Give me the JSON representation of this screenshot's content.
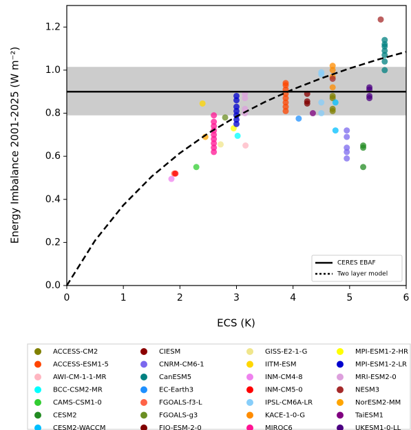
{
  "chart_data": {
    "type": "scatter",
    "xlabel": "ECS (K)",
    "ylabel": "Energy Imbalance 2001-2025 (W m⁻²)",
    "xlim": [
      0,
      6
    ],
    "ylim": [
      0,
      1.3
    ],
    "xticks": [
      0,
      1,
      2,
      3,
      4,
      5,
      6
    ],
    "yticks": [
      {
        "value": 0,
        "label": "0.0"
      },
      {
        "value": 0.2,
        "label": "0.2"
      },
      {
        "value": 0.4,
        "label": "0.4"
      },
      {
        "value": 0.6,
        "label": "0.6"
      },
      {
        "value": 0.8,
        "label": "0.8"
      },
      {
        "value": 1.0,
        "label": "1.0"
      },
      {
        "value": 1.2,
        "label": "1.2"
      }
    ],
    "obs_band": {
      "ylim": [
        0.79,
        1.015
      ],
      "color": "#cccccc"
    },
    "reference_line": {
      "name": "CERES EBAF",
      "y": 0.9,
      "color": "#000000",
      "style": "solid"
    },
    "model_curve": {
      "name": "Two layer model",
      "color": "#000000",
      "style": "dashed",
      "x": [
        0,
        0.5,
        1,
        1.5,
        2,
        2.5,
        3,
        3.5,
        4,
        4.5,
        5,
        5.5,
        6
      ],
      "y": [
        0,
        0.209,
        0.373,
        0.506,
        0.615,
        0.707,
        0.785,
        0.852,
        0.911,
        0.962,
        1.008,
        1.049,
        1.085
      ]
    },
    "inner_legend_position": "lower right",
    "series_legend_position": "below",
    "series": [
      {
        "name": "ACCESS-CM2",
        "color": "#808000",
        "x": [
          4.7,
          4.7,
          4.7,
          4.7
        ],
        "y": [
          0.81,
          0.82,
          0.87,
          0.88
        ]
      },
      {
        "name": "ACCESS-ESM1-5",
        "color": "#ff4500",
        "x": [
          3.87,
          3.87,
          3.87,
          3.87,
          3.87,
          3.87,
          3.87,
          3.87
        ],
        "y": [
          0.81,
          0.83,
          0.85,
          0.87,
          0.89,
          0.91,
          0.93,
          0.94
        ]
      },
      {
        "name": "AWI-CM-1-1-MR",
        "color": "#ffb6c1",
        "x": [
          3.16
        ],
        "y": [
          0.65
        ]
      },
      {
        "name": "BCC-CSM2-MR",
        "color": "#00ffff",
        "x": [
          3.02
        ],
        "y": [
          0.695
        ]
      },
      {
        "name": "CAMS-CSM1-0",
        "color": "#32cd32",
        "x": [
          2.29
        ],
        "y": [
          0.55
        ]
      },
      {
        "name": "CESM2",
        "color": "#228b22",
        "x": [
          5.24,
          5.24,
          5.24
        ],
        "y": [
          0.55,
          0.64,
          0.65
        ]
      },
      {
        "name": "CESM2-WACCM",
        "color": "#00bfff",
        "x": [
          4.75,
          4.75
        ],
        "y": [
          0.72,
          0.85
        ]
      },
      {
        "name": "CIESM",
        "color": "#8b0000",
        "x": [
          4.25
        ],
        "y": [
          0.89
        ]
      },
      {
        "name": "CNRM-CM6-1",
        "color": "#7b68ee",
        "x": [
          4.95,
          4.95,
          4.95,
          4.95,
          4.95
        ],
        "y": [
          0.59,
          0.62,
          0.64,
          0.69,
          0.72
        ]
      },
      {
        "name": "CanESM5",
        "color": "#008080",
        "x": [
          5.62,
          5.62,
          5.62,
          5.62,
          5.62,
          5.62,
          5.62
        ],
        "y": [
          1.0,
          1.04,
          1.07,
          1.09,
          1.11,
          1.12,
          1.14
        ]
      },
      {
        "name": "EC-Earth3",
        "color": "#1e90ff",
        "x": [
          4.1
        ],
        "y": [
          0.775
        ]
      },
      {
        "name": "FGOALS-f3-L",
        "color": "#ff6347",
        "x": [
          1.9
        ],
        "y": [
          0.52
        ]
      },
      {
        "name": "FGOALS-g3",
        "color": "#6b8e23",
        "x": [
          2.8
        ],
        "y": [
          0.78
        ]
      },
      {
        "name": "FIO-ESM-2-0",
        "color": "#800000",
        "x": [
          4.25,
          4.25
        ],
        "y": [
          0.845,
          0.855
        ]
      },
      {
        "name": "GISS-E2-1-G",
        "color": "#f0e68c",
        "x": [
          2.72
        ],
        "y": [
          0.655
        ]
      },
      {
        "name": "IITM-ESM",
        "color": "#ffd700",
        "x": [
          2.4
        ],
        "y": [
          0.845
        ]
      },
      {
        "name": "INM-CM4-8",
        "color": "#ee82ee",
        "x": [
          1.85
        ],
        "y": [
          0.495
        ]
      },
      {
        "name": "INM-CM5-0",
        "color": "#ff0000",
        "x": [
          1.92
        ],
        "y": [
          0.52
        ]
      },
      {
        "name": "IPSL-CM6A-LR",
        "color": "#87cefa",
        "x": [
          4.5,
          4.5,
          4.5,
          4.5
        ],
        "y": [
          0.8,
          0.85,
          0.98,
          0.99
        ]
      },
      {
        "name": "KACE-1-0-G",
        "color": "#ff8c00",
        "x": [
          4.7,
          4.7,
          4.7,
          4.7
        ],
        "y": [
          0.92,
          0.97,
          1.0,
          1.02
        ]
      },
      {
        "name": "MIROC6",
        "color": "#ff1493",
        "x": [
          2.6,
          2.6,
          2.6,
          2.6,
          2.6,
          2.6,
          2.6,
          2.6,
          2.6
        ],
        "y": [
          0.62,
          0.64,
          0.66,
          0.68,
          0.7,
          0.72,
          0.74,
          0.76,
          0.79
        ]
      },
      {
        "name": "MPI-ESM1-2-HR",
        "color": "#ffff00",
        "x": [
          2.95
        ],
        "y": [
          0.73
        ]
      },
      {
        "name": "MPI-ESM1-2-LR",
        "color": "#0000cd",
        "x": [
          3.0,
          3.0,
          3.0,
          3.0,
          3.0,
          3.0,
          3.0
        ],
        "y": [
          0.75,
          0.77,
          0.79,
          0.81,
          0.83,
          0.86,
          0.88
        ]
      },
      {
        "name": "MRI-ESM2-0",
        "color": "#dda0dd",
        "x": [
          3.15,
          3.15,
          3.15,
          3.15
        ],
        "y": [
          0.8,
          0.82,
          0.87,
          0.89
        ]
      },
      {
        "name": "NESM3",
        "color": "#a52a2a",
        "x": [
          5.55,
          4.7
        ],
        "y": [
          1.235,
          0.96
        ]
      },
      {
        "name": "NorESM2-MM",
        "color": "#ffa500",
        "x": [
          2.45
        ],
        "y": [
          0.69
        ]
      },
      {
        "name": "TaiESM1",
        "color": "#800080",
        "x": [
          4.35
        ],
        "y": [
          0.8
        ]
      },
      {
        "name": "UKESM1-0-LL",
        "color": "#4b0082",
        "x": [
          5.35,
          5.35,
          5.35,
          5.35
        ],
        "y": [
          0.87,
          0.88,
          0.91,
          0.92
        ]
      }
    ]
  }
}
